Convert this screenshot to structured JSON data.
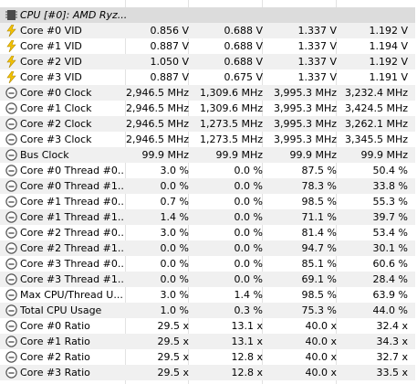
{
  "group": {
    "label": "CPU [#0]: AMD Ryz..."
  },
  "rows": [
    {
      "icon": "voltage-bolt-icon",
      "name": "Core #0 VID",
      "values": [
        "0.856 V",
        "0.688 V",
        "1.337 V",
        "1.192 V"
      ]
    },
    {
      "icon": "voltage-bolt-icon",
      "name": "Core #1 VID",
      "values": [
        "0.887 V",
        "0.688 V",
        "1.337 V",
        "1.194 V"
      ]
    },
    {
      "icon": "voltage-bolt-icon",
      "name": "Core #2 VID",
      "values": [
        "1.050 V",
        "0.688 V",
        "1.337 V",
        "1.192 V"
      ]
    },
    {
      "icon": "voltage-bolt-icon",
      "name": "Core #3 VID",
      "values": [
        "0.887 V",
        "0.675 V",
        "1.337 V",
        "1.191 V"
      ]
    },
    {
      "icon": "gauge-icon",
      "name": "Core #0 Clock",
      "values": [
        "2,946.5 MHz",
        "1,309.6 MHz",
        "3,995.3 MHz",
        "3,232.4 MHz"
      ]
    },
    {
      "icon": "gauge-icon",
      "name": "Core #1 Clock",
      "values": [
        "2,946.5 MHz",
        "1,309.6 MHz",
        "3,995.3 MHz",
        "3,424.5 MHz"
      ]
    },
    {
      "icon": "gauge-icon",
      "name": "Core #2 Clock",
      "values": [
        "2,946.5 MHz",
        "1,273.5 MHz",
        "3,995.3 MHz",
        "3,262.1 MHz"
      ]
    },
    {
      "icon": "gauge-icon",
      "name": "Core #3 Clock",
      "values": [
        "2,946.5 MHz",
        "1,273.5 MHz",
        "3,995.3 MHz",
        "3,345.5 MHz"
      ]
    },
    {
      "icon": "gauge-icon",
      "name": "Bus Clock",
      "values": [
        "99.9 MHz",
        "99.9 MHz",
        "99.9 MHz",
        "99.9 MHz"
      ]
    },
    {
      "icon": "gauge-icon",
      "name": "Core #0 Thread #0...",
      "values": [
        "3.0 %",
        "0.0 %",
        "87.5 %",
        "50.4 %"
      ]
    },
    {
      "icon": "gauge-icon",
      "name": "Core #0 Thread #1...",
      "values": [
        "0.0 %",
        "0.0 %",
        "78.3 %",
        "33.8 %"
      ]
    },
    {
      "icon": "gauge-icon",
      "name": "Core #1 Thread #0...",
      "values": [
        "0.7 %",
        "0.0 %",
        "98.5 %",
        "55.3 %"
      ]
    },
    {
      "icon": "gauge-icon",
      "name": "Core #1 Thread #1...",
      "values": [
        "1.4 %",
        "0.0 %",
        "71.1 %",
        "39.7 %"
      ]
    },
    {
      "icon": "gauge-icon",
      "name": "Core #2 Thread #0...",
      "values": [
        "3.0 %",
        "0.0 %",
        "81.4 %",
        "53.4 %"
      ]
    },
    {
      "icon": "gauge-icon",
      "name": "Core #2 Thread #1...",
      "values": [
        "0.0 %",
        "0.0 %",
        "94.7 %",
        "30.1 %"
      ]
    },
    {
      "icon": "gauge-icon",
      "name": "Core #3 Thread #0...",
      "values": [
        "0.0 %",
        "0.0 %",
        "85.1 %",
        "60.6 %"
      ]
    },
    {
      "icon": "gauge-icon",
      "name": "Core #3 Thread #1...",
      "values": [
        "0.0 %",
        "0.0 %",
        "69.1 %",
        "28.4 %"
      ]
    },
    {
      "icon": "gauge-icon",
      "name": "Max CPU/Thread U...",
      "values": [
        "3.0 %",
        "1.4 %",
        "98.5 %",
        "63.9 %"
      ]
    },
    {
      "icon": "gauge-icon",
      "name": "Total CPU Usage",
      "values": [
        "1.0 %",
        "0.3 %",
        "75.3 %",
        "44.0 %"
      ]
    },
    {
      "icon": "gauge-icon",
      "name": "Core #0 Ratio",
      "values": [
        "29.5 x",
        "13.1 x",
        "40.0 x",
        "32.4 x"
      ]
    },
    {
      "icon": "gauge-icon",
      "name": "Core #1 Ratio",
      "values": [
        "29.5 x",
        "13.1 x",
        "40.0 x",
        "34.3 x"
      ]
    },
    {
      "icon": "gauge-icon",
      "name": "Core #2 Ratio",
      "values": [
        "29.5 x",
        "12.8 x",
        "40.0 x",
        "32.7 x"
      ]
    },
    {
      "icon": "gauge-icon",
      "name": "Core #3 Ratio",
      "values": [
        "29.5 x",
        "12.8 x",
        "40.0 x",
        "33.5 x"
      ]
    }
  ],
  "colors": {
    "group_bg": "#dcdcdc",
    "row_alt_bg": "#f0f0f0",
    "bolt_fill": "#f5c400",
    "gauge_stroke": "#555555"
  }
}
